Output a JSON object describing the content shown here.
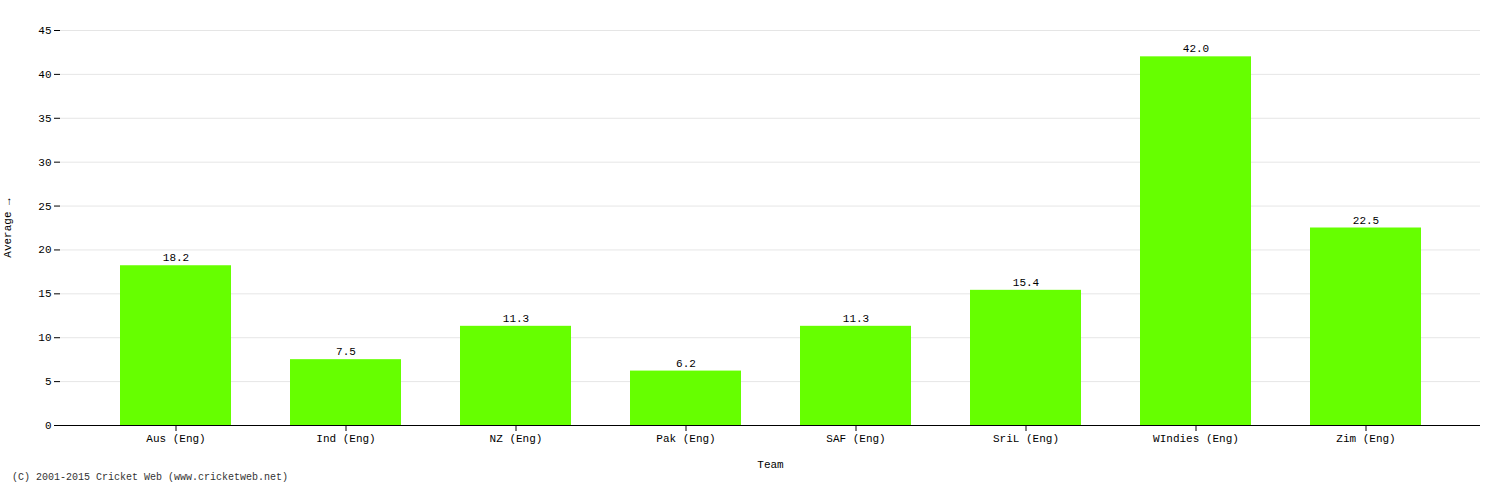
{
  "chart_data": {
    "type": "bar",
    "categories": [
      "Aus (Eng)",
      "Ind (Eng)",
      "NZ (Eng)",
      "Pak (Eng)",
      "SAF (Eng)",
      "SriL (Eng)",
      "WIndies (Eng)",
      "Zim (Eng)"
    ],
    "values": [
      18.2,
      7.5,
      11.3,
      6.2,
      11.3,
      15.4,
      42.0,
      22.5
    ],
    "value_labels": [
      "18.2",
      "7.5",
      "11.3",
      "6.2",
      "11.3",
      "15.4",
      "42.0",
      "22.5"
    ],
    "data_labels": true,
    "color": "#66ff00",
    "xlabel": "Team",
    "ylabel": "Average",
    "ylim": [
      0,
      45
    ],
    "yticks": [
      0,
      5,
      10,
      15,
      20,
      25,
      30,
      35,
      40,
      45
    ],
    "grid": true,
    "annotations": [
      "(C) 2001-2015 Cricket Web (www.cricketweb.net)"
    ]
  }
}
